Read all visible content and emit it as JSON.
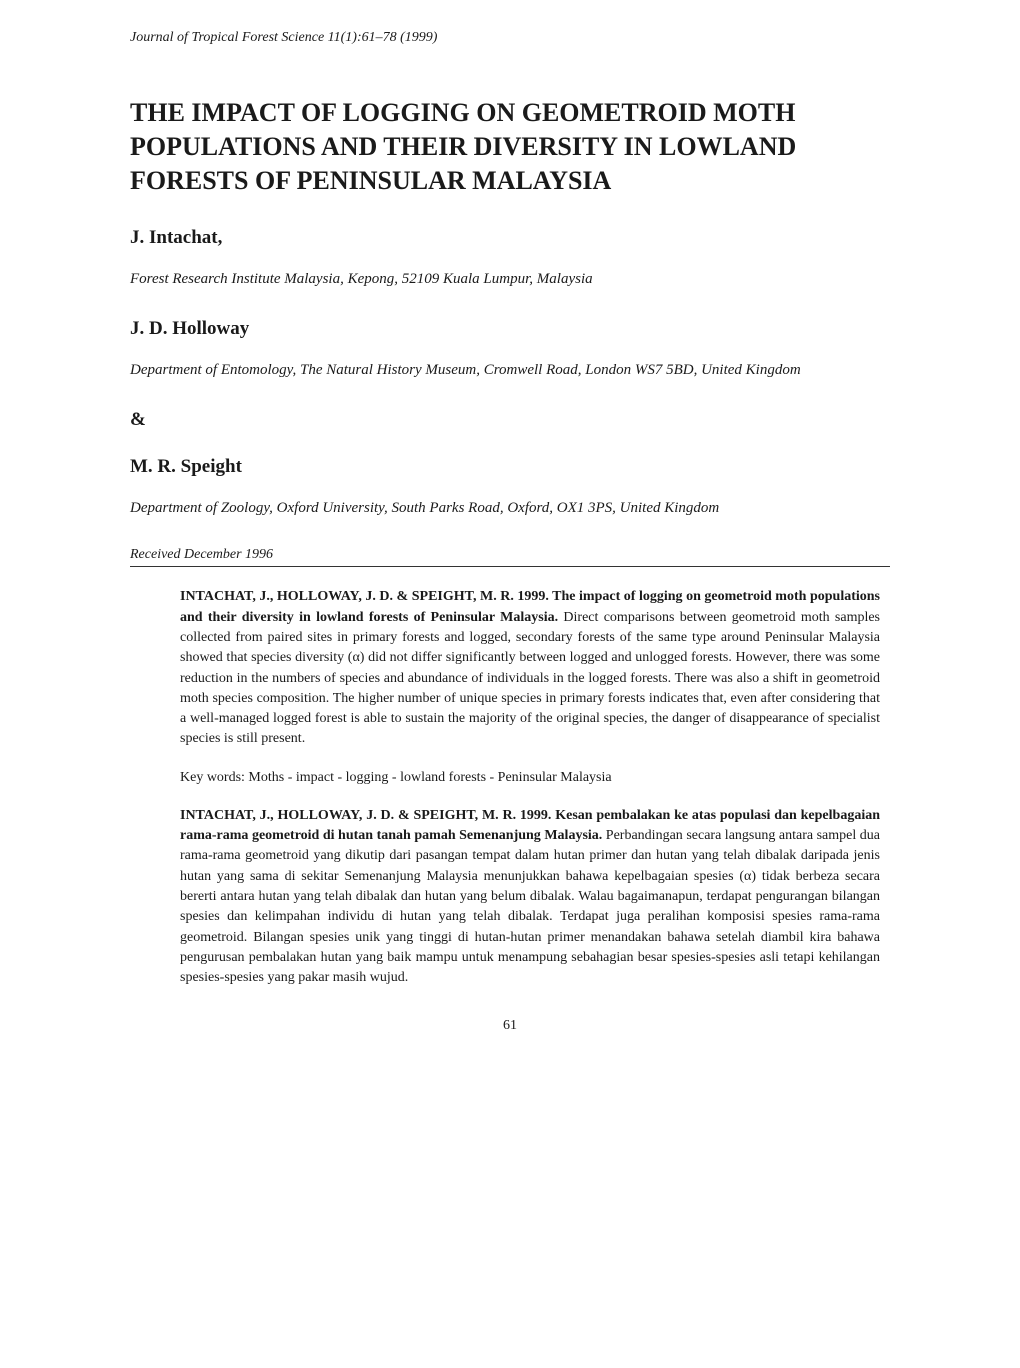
{
  "journal": {
    "name": "Journal of Tropical Forest Science",
    "volume": "11(1):61–78 (1999)"
  },
  "title": "THE IMPACT OF LOGGING ON GEOMETROID MOTH POPULATIONS AND THEIR DIVERSITY IN LOWLAND FORESTS OF PENINSULAR MALAYSIA",
  "authors": [
    {
      "name": "J. Intachat,",
      "affiliation": "Forest Research Institute Malaysia, Kepong, 52109 Kuala Lumpur, Malaysia"
    },
    {
      "name": "J. D. Holloway",
      "affiliation": "Department of Entomology, The Natural History Museum, Cromwell Road, London WS7 5BD, United Kingdom"
    },
    {
      "name": "M. R. Speight",
      "affiliation": "Department of Zoology, Oxford University, South Parks Road, Oxford, OX1 3PS, United Kingdom"
    }
  ],
  "ampersand": "&",
  "received": "Received December 1996",
  "abstract_en": {
    "citation": "INTACHAT, J., HOLLOWAY, J. D. & SPEIGHT, M. R. 1999. The impact of logging on geometroid moth populations and their diversity in lowland forests of Peninsular Malaysia.",
    "body": " Direct comparisons between geometroid moth samples collected from paired sites in primary forests and logged, secondary forests of the same type around Peninsular Malaysia showed that species diversity (α) did not differ significantly between logged and unlogged forests. However, there was some reduction in the numbers of species and abundance of individuals in the logged forests. There was also a shift in geometroid moth species composition. The higher number of unique species in primary forests indicates that, even after considering that a well-managed logged forest is able to sustain the majority of the original species, the danger of disappearance of specialist species is still present."
  },
  "keywords": "Key words: Moths - impact - logging - lowland forests - Peninsular Malaysia",
  "abstract_ms": {
    "citation": "INTACHAT, J., HOLLOWAY, J. D. & SPEIGHT, M. R. 1999. Kesan pembalakan ke atas populasi dan kepelbagaian rama-rama geometroid di hutan tanah pamah Semenanjung Malaysia.",
    "body": " Perbandingan secara langsung antara sampel dua rama-rama geometroid yang dikutip dari pasangan tempat dalam hutan primer dan hutan yang telah dibalak daripada jenis hutan yang sama di sekitar Semenanjung Malaysia menunjukkan bahawa kepelbagaian spesies (α) tidak berbeza secara bererti antara hutan yang telah dibalak dan hutan yang belum dibalak. Walau bagaimanapun, terdapat pengurangan bilangan spesies dan kelimpahan individu di hutan yang telah dibalak. Terdapat juga peralihan komposisi spesies rama-rama geometroid. Bilangan spesies unik yang tinggi di hutan-hutan primer menandakan bahawa setelah diambil kira bahawa pengurusan pembalakan hutan yang baik mampu untuk menampung sebahagian besar spesies-spesies asli tetapi kehilangan spesies-spesies yang pakar masih wujud."
  },
  "page_number": "61",
  "colors": {
    "background": "#ffffff",
    "text": "#1a1a1a"
  },
  "typography": {
    "title_fontsize": 26,
    "author_fontsize": 19,
    "body_fontsize": 14,
    "affiliation_fontsize": 15
  }
}
